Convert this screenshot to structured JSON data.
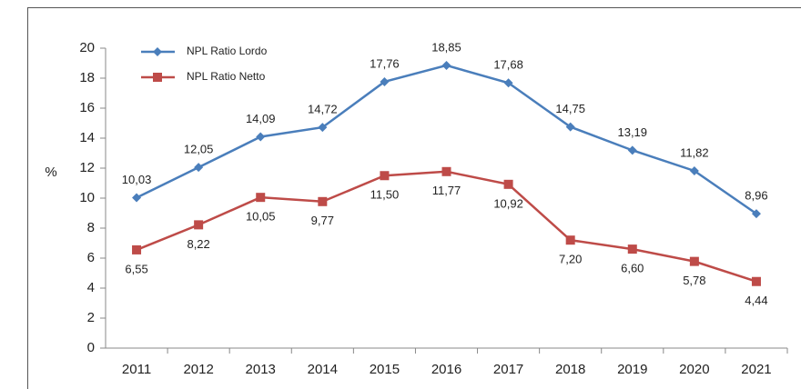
{
  "chart_data": {
    "type": "line",
    "ylabel": "%",
    "categories": [
      "2011",
      "2012",
      "2013",
      "2014",
      "2015",
      "2016",
      "2017",
      "2018",
      "2019",
      "2020",
      "2021"
    ],
    "series": [
      {
        "name": "NPL Ratio Lordo",
        "color": "#4a7ebb",
        "marker": "diamond",
        "values": [
          10.03,
          12.05,
          14.09,
          14.72,
          17.76,
          18.85,
          17.68,
          14.75,
          13.19,
          11.82,
          8.96
        ],
        "value_labels": [
          "10,03",
          "12,05",
          "14,09",
          "14,72",
          "17,76",
          "18,85",
          "17,68",
          "14,75",
          "13,19",
          "11,82",
          "8,96"
        ]
      },
      {
        "name": "NPL Ratio Netto",
        "color": "#be4b48",
        "marker": "square",
        "values": [
          6.55,
          8.22,
          10.05,
          9.77,
          11.5,
          11.77,
          10.92,
          7.2,
          6.6,
          5.78,
          4.44
        ],
        "value_labels": [
          "6,55",
          "8,22",
          "10,05",
          "9,77",
          "11,50",
          "11,77",
          "10,92",
          "7,20",
          "6,60",
          "5,78",
          "4,44"
        ]
      }
    ],
    "ylim": [
      0,
      20
    ],
    "yticks": [
      0,
      2,
      4,
      6,
      8,
      10,
      12,
      14,
      16,
      18,
      20
    ],
    "grid": false,
    "legend": "top-left"
  }
}
